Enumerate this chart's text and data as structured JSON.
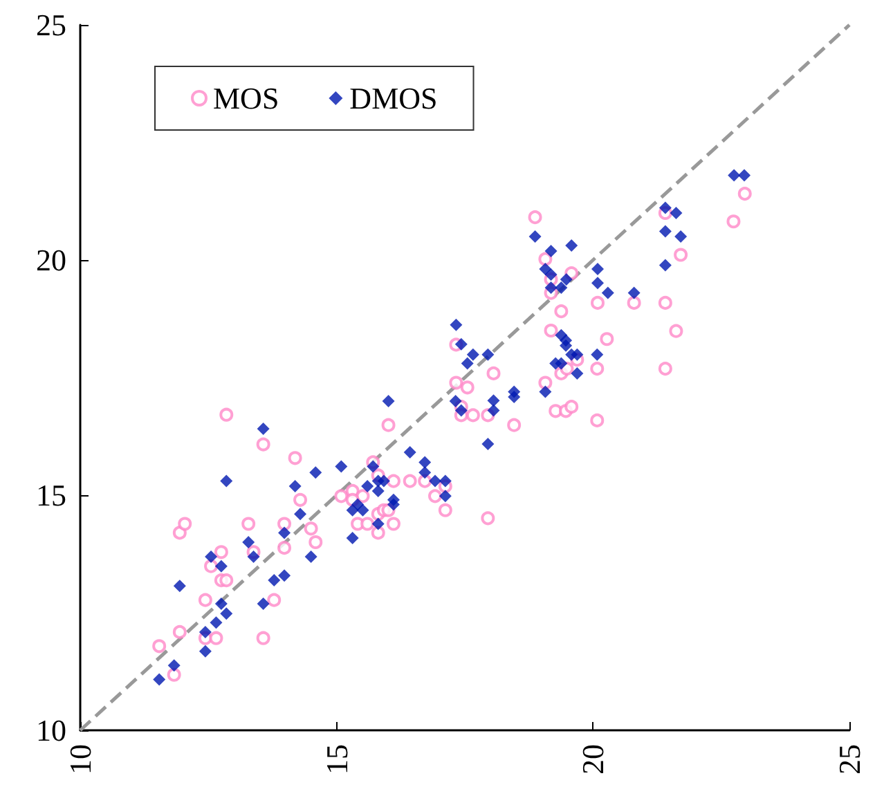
{
  "chart_data": {
    "type": "scatter",
    "xlim": [
      10,
      25
    ],
    "ylim": [
      10,
      25
    ],
    "xticks": [
      10,
      15,
      20,
      25
    ],
    "yticks": [
      10,
      15,
      20,
      25
    ],
    "grid": false,
    "legend": "top left",
    "series": [
      {
        "name": "MOS",
        "type": "scatter",
        "marker": "circle",
        "color": "#ff88c8",
        "x": [
          12.85,
          13.57,
          14.19,
          16.01,
          14.29,
          13.28,
          13.98,
          14.5,
          14.59,
          13.98,
          13.38,
          12.75,
          12.55,
          12.75,
          12.85,
          11.94,
          12.04,
          12.44,
          13.78,
          11.94,
          12.44,
          12.65,
          13.57,
          11.54,
          11.83,
          15.71,
          15.81,
          15.09,
          15.31,
          15.51,
          15.31,
          16.11,
          16.43,
          16.72,
          17.12,
          16.92,
          17.12,
          15.81,
          15.92,
          16.01,
          15.41,
          15.6,
          16.11,
          15.81,
          17.33,
          18.06,
          17.33,
          17.55,
          17.43,
          17.43,
          17.66,
          17.95,
          18.46,
          17.95,
          19.07,
          19.27,
          19.47,
          19.58,
          19.38,
          19.49,
          19.69,
          20.08,
          20.08,
          19.18,
          19.38,
          20.27,
          18.87,
          19.07,
          19.18,
          19.58,
          19.18,
          21.41,
          21.71,
          22.74,
          22.96,
          20.09,
          20.8,
          21.41,
          21.62,
          21.41
        ],
        "values": [
          16.71,
          16.08,
          15.79,
          16.49,
          14.9,
          14.39,
          14.39,
          14.29,
          14.0,
          13.88,
          13.79,
          13.79,
          13.49,
          13.19,
          13.19,
          14.2,
          14.39,
          12.77,
          12.77,
          12.09,
          11.96,
          11.96,
          11.96,
          11.79,
          11.18,
          15.7,
          15.42,
          14.98,
          15.09,
          14.98,
          14.9,
          15.3,
          15.3,
          15.3,
          15.19,
          14.98,
          14.68,
          14.6,
          14.68,
          14.68,
          14.39,
          14.39,
          14.39,
          14.2,
          18.2,
          17.59,
          17.39,
          17.29,
          16.88,
          16.7,
          16.7,
          16.7,
          16.49,
          14.51,
          17.39,
          16.79,
          16.79,
          16.88,
          17.59,
          17.69,
          17.88,
          17.69,
          16.59,
          18.5,
          18.91,
          18.32,
          20.91,
          20.02,
          19.59,
          19.72,
          19.3,
          21.0,
          20.11,
          20.82,
          21.41,
          19.09,
          19.09,
          19.09,
          18.49,
          17.69
        ]
      },
      {
        "name": "DMOS",
        "type": "scatter",
        "marker": "diamond",
        "color": "#0018b0",
        "x": [
          16.01,
          13.57,
          12.85,
          16.43,
          16.72,
          16.72,
          16.92,
          17.12,
          17.12,
          17.32,
          15.09,
          15.71,
          14.59,
          14.19,
          15.6,
          15.81,
          15.92,
          15.81,
          15.41,
          15.31,
          15.51,
          16.11,
          16.11,
          15.81,
          15.31,
          14.29,
          13.98,
          13.28,
          13.38,
          14.5,
          12.55,
          12.75,
          11.94,
          13.98,
          13.78,
          13.57,
          12.75,
          12.85,
          12.65,
          12.44,
          12.44,
          11.83,
          11.54,
          17.33,
          17.43,
          17.66,
          17.55,
          17.95,
          17.43,
          18.06,
          18.06,
          17.95,
          18.46,
          18.46,
          19.07,
          19.27,
          19.38,
          19.38,
          19.47,
          19.47,
          19.58,
          19.69,
          19.69,
          20.08,
          18.87,
          19.18,
          19.58,
          19.07,
          19.18,
          19.48,
          19.18,
          19.38,
          20.09,
          20.09,
          20.29,
          20.8,
          21.41,
          21.62,
          21.41,
          21.71,
          21.41,
          22.75,
          22.95
        ],
        "values": [
          17.0,
          16.41,
          15.3,
          15.91,
          15.7,
          15.48,
          15.3,
          15.3,
          14.98,
          17.0,
          15.61,
          15.61,
          15.48,
          15.19,
          15.19,
          15.3,
          15.3,
          15.09,
          14.8,
          14.68,
          14.68,
          14.9,
          14.8,
          14.39,
          14.09,
          14.6,
          14.2,
          14.0,
          13.69,
          13.69,
          13.69,
          13.49,
          13.07,
          13.29,
          13.19,
          12.69,
          12.69,
          12.48,
          12.29,
          12.09,
          11.68,
          11.38,
          11.08,
          18.62,
          18.21,
          17.99,
          17.8,
          17.99,
          16.8,
          17.01,
          16.8,
          16.09,
          17.2,
          17.09,
          17.2,
          17.8,
          17.8,
          18.4,
          18.29,
          18.18,
          17.99,
          17.99,
          17.59,
          17.99,
          20.5,
          20.19,
          20.31,
          19.81,
          19.69,
          19.59,
          19.41,
          19.41,
          19.81,
          19.51,
          19.3,
          19.3,
          21.11,
          21.0,
          20.61,
          20.5,
          19.89,
          21.8,
          21.8
        ]
      },
      {
        "type": "line",
        "color": "#999999",
        "line_style": "dashed",
        "marker": "none",
        "x": [
          10,
          25
        ],
        "values": [
          10,
          25
        ]
      }
    ]
  }
}
